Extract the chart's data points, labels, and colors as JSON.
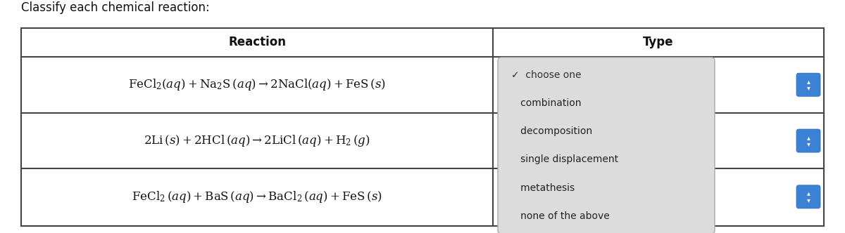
{
  "title": "Classify each chemical reaction:",
  "title_fontsize": 12,
  "col1_header": "Reaction",
  "col2_header": "Type",
  "reactions_plain": [
    "FeCl₂(αβ) + Na₂S (αβ) → 2NaCl (αβ) + FeS (β)",
    "2Li (β) + 2HCl (αβ) → 2LiCl (αβ) + H₂ (γ)",
    "FeCl₂ (αβ) + BaS (αβ) → BaCl₂ (αβ) + FeS (β)"
  ],
  "reactions_latex": [
    "$\\mathrm{FeCl_2}(aq) + \\mathrm{Na_2S}\\,(aq) \\rightarrow 2\\mathrm{NaCl}(aq) + \\mathrm{FeS}\\,(s)$",
    "$2\\mathrm{Li}\\,(s) + 2\\mathrm{HCl}\\,(aq) \\rightarrow 2\\mathrm{LiCl}\\,(aq) + \\mathrm{H_2}\\,(g)$",
    "$\\mathrm{FeCl_2}\\,(aq) + \\mathrm{BaS}\\,(aq) \\rightarrow \\mathrm{BaCl_2}\\,(aq) + \\mathrm{FeS}\\,(s)$"
  ],
  "dropdown_items": [
    "✓  choose one",
    "   combination",
    "   decomposition",
    "   single displacement",
    "   metathesis",
    "   none of the above"
  ],
  "bg_color": "#ffffff",
  "table_border_color": "#444444",
  "dropdown_bg": "#dcdcdc",
  "dropdown_border": "#aaaaaa",
  "dropdown_text_color": "#222222",
  "blue_button_color": "#3b82d4",
  "header_fontsize": 12,
  "reaction_fontsize": 12,
  "dropdown_fontsize": 10
}
